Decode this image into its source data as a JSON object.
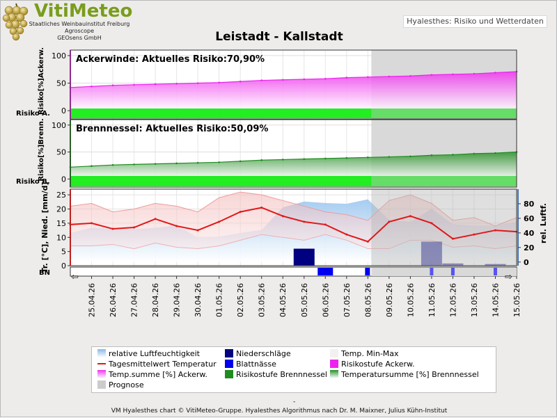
{
  "logo": {
    "title": "VitiMeteo",
    "line1": "Staatliches Weinbauinstitut Freiburg",
    "line2": "Agroscope",
    "line3": "GEOsens GmbH"
  },
  "app_title": "Hyalesthes: Risiko und Wetterdaten",
  "colors": {
    "ackerwinde": "#ee22ee",
    "brennnessel": "#1e8c1e",
    "temperature": "#e01818",
    "humidity": "#8ab8e8",
    "precip": "#000080",
    "leafwet": "#0000ee",
    "risk_bar": "#22ee22",
    "prognose": "#cccccc"
  },
  "chart_data": [
    {
      "type": "area",
      "panel": "ackerwinde",
      "title": "Ackerwinde: Aktuelles Risiko:70,90%",
      "ylabel": "Risiko[%]Ackerw.",
      "risk_label": "Risiko A.",
      "ylim": [
        -15,
        110
      ],
      "yticks": [
        0,
        50,
        100
      ],
      "x": [
        "24.04.26",
        "25.04.26",
        "26.04.26",
        "27.04.26",
        "28.04.26",
        "29.04.26",
        "30.04.26",
        "01.05.26",
        "02.05.26",
        "03.05.26",
        "04.05.26",
        "05.05.26",
        "06.05.26",
        "07.05.26",
        "08.05.26",
        "09.05.26",
        "10.05.26",
        "11.05.26",
        "12.05.26",
        "13.05.26",
        "14.05.26",
        "15.05.26"
      ],
      "values": [
        42,
        44,
        46,
        47,
        48,
        49,
        50,
        51,
        53,
        55,
        56,
        57,
        58,
        60,
        61,
        62,
        63,
        65,
        66,
        67,
        69,
        70.9
      ],
      "risk_level": "green"
    },
    {
      "type": "area",
      "panel": "brennnessel",
      "title": "Brennnessel: Aktuelles Risiko:50,09%",
      "ylabel": "Risiko[%]Brenn.",
      "risk_label": "Risiko B.",
      "ylim": [
        -15,
        110
      ],
      "yticks": [
        0,
        50,
        100
      ],
      "x": [
        "24.04.26",
        "25.04.26",
        "26.04.26",
        "27.04.26",
        "28.04.26",
        "29.04.26",
        "30.04.26",
        "01.05.26",
        "02.05.26",
        "03.05.26",
        "04.05.26",
        "05.05.26",
        "06.05.26",
        "07.05.26",
        "08.05.26",
        "09.05.26",
        "10.05.26",
        "11.05.26",
        "12.05.26",
        "13.05.26",
        "14.05.26",
        "15.05.26"
      ],
      "values": [
        22,
        24,
        26,
        27,
        28,
        29,
        30,
        31,
        33,
        35,
        36,
        37,
        38,
        39,
        40,
        41,
        42,
        44,
        45,
        47,
        48,
        50.09
      ],
      "risk_level": "green"
    },
    {
      "type": "line",
      "panel": "weather",
      "ylabel": "Tr. [°C], Nied. [mm/d]",
      "y2label": "rel. Luftf.",
      "ylim": [
        0,
        27
      ],
      "yticks": [
        0,
        5,
        10,
        15,
        20,
        25
      ],
      "y2lim": [
        -5,
        100
      ],
      "y2ticks": [
        0,
        20,
        40,
        60,
        80
      ],
      "x": [
        "24.04.26",
        "25.04.26",
        "26.04.26",
        "27.04.26",
        "28.04.26",
        "29.04.26",
        "30.04.26",
        "01.05.26",
        "02.05.26",
        "03.05.26",
        "04.05.26",
        "05.05.26",
        "06.05.26",
        "07.05.26",
        "08.05.26",
        "09.05.26",
        "10.05.26",
        "11.05.26",
        "12.05.26",
        "13.05.26",
        "14.05.26",
        "15.05.26"
      ],
      "series": [
        {
          "name": "Tagesmittelwert Temperatur",
          "values": [
            14.5,
            15,
            13,
            13.5,
            16.5,
            14,
            12.5,
            15.5,
            19,
            20.5,
            17.5,
            15.5,
            14.5,
            11,
            8.5,
            15.5,
            17.5,
            15,
            9.5,
            11,
            12.5,
            12
          ]
        },
        {
          "name": "Temp. Min-Max",
          "min": [
            7,
            7,
            7.5,
            6,
            8,
            6.5,
            6,
            7,
            9,
            11,
            10,
            9,
            11,
            9,
            6,
            6,
            9,
            9,
            6.5,
            7,
            6,
            7
          ],
          "max": [
            21,
            22,
            19,
            20,
            22,
            21,
            19,
            24,
            26,
            25,
            23,
            21,
            19,
            18,
            16,
            23,
            25,
            22,
            16,
            17,
            14,
            17
          ]
        },
        {
          "name": "relative Luftfeuchtigkeit",
          "values": [
            40,
            47,
            46,
            45,
            47,
            50,
            34,
            35,
            40,
            44,
            75,
            83,
            81,
            80,
            86,
            58,
            55,
            73,
            52,
            50,
            50,
            55
          ]
        },
        {
          "name": "Niederschläge",
          "values": [
            0,
            0,
            0,
            0,
            0,
            0,
            0,
            0,
            0,
            0,
            0,
            6,
            0,
            0,
            0,
            0,
            0,
            8.5,
            0.8,
            0,
            0.6,
            0
          ]
        },
        {
          "name": "Blattnässe",
          "bn_days": [
            "06.05.26",
            "08.05.26",
            "11.05.26",
            "12.05.26",
            "14.05.26"
          ]
        }
      ],
      "bn_label": "BN",
      "prognose_from": "08.05.26"
    }
  ],
  "xticks": [
    "25.04.26",
    "26.04.26",
    "27.04.26",
    "28.04.26",
    "29.04.26",
    "30.04.26",
    "01.05.26",
    "02.05.26",
    "03.05.26",
    "04.05.26",
    "05.05.26",
    "06.05.26",
    "07.05.26",
    "08.05.26",
    "09.05.26",
    "10.05.26",
    "11.05.26",
    "12.05.26",
    "13.05.26",
    "14.05.26",
    "15.05.26"
  ],
  "chart_title": "Leistadt - Kallstadt",
  "legend": [
    {
      "label": "relative Luftfeuchtigkeit",
      "swatch": "humidity"
    },
    {
      "label": "Niederschläge",
      "swatch": "precip"
    },
    {
      "label": "Temp. Min-Max",
      "swatch": "minmax"
    },
    {
      "label": "Tagesmittelwert Temperatur",
      "swatch": "temperature"
    },
    {
      "label": "Blattnässe",
      "swatch": "leafwet"
    },
    {
      "label": "Risikostufe Ackerw.",
      "swatch": "ackerwinde"
    },
    {
      "label": "Temp.summe [%] Ackerw.",
      "swatch": "acker_grad"
    },
    {
      "label": "Risikostufe Brennnessel",
      "swatch": "brennnessel"
    },
    {
      "label": "Temperatursumme [%] Brennnessel",
      "swatch": "brenn_grad"
    },
    {
      "label": "Prognose",
      "swatch": "prognose"
    }
  ],
  "footer_dash": "-",
  "footer": "VM Hyalesthes chart © VitiMeteo-Gruppe. Hyalesthes Algorithmus nach Dr. M. Maixner, Julius Kühn-Institut"
}
